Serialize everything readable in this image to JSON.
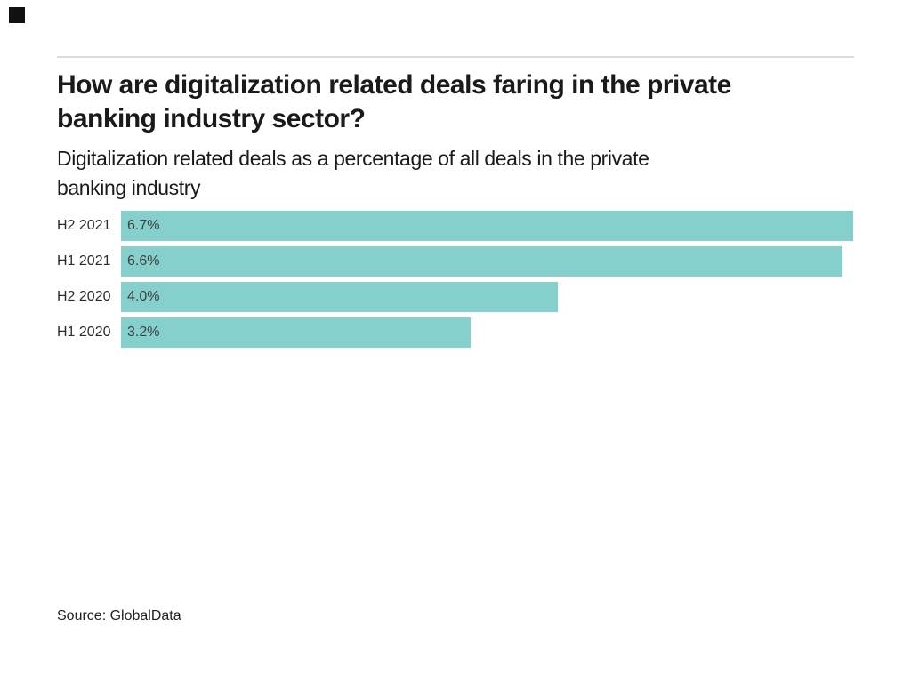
{
  "page": {
    "background": "#ffffff"
  },
  "brand": {
    "square_color": "#111111"
  },
  "header": {
    "title_lines": [
      "How are digitalization related deals faring in the private",
      "banking industry sector?"
    ],
    "subtitle_lines": [
      "Digitalization related deals as a percentage of all deals in the private",
      "banking industry"
    ]
  },
  "chart_data": {
    "type": "bar",
    "orientation": "horizontal",
    "title": "How are digitalization related deals faring in the private banking industry sector?",
    "subtitle": "Digitalization related deals as a percentage of all deals in the private banking industry",
    "categories": [
      "H2 2021",
      "H1 2021",
      "H2 2020",
      "H1 2020"
    ],
    "values": [
      6.7,
      6.6,
      4.0,
      3.2
    ],
    "value_labels": [
      "6.7%",
      "6.6%",
      "4.0%",
      "3.2%"
    ],
    "xlim": [
      0,
      6.7
    ],
    "bar_color": "#85D0CC",
    "grid": false,
    "legend_position": "none"
  },
  "footer": {
    "source": "Source: GlobalData"
  }
}
